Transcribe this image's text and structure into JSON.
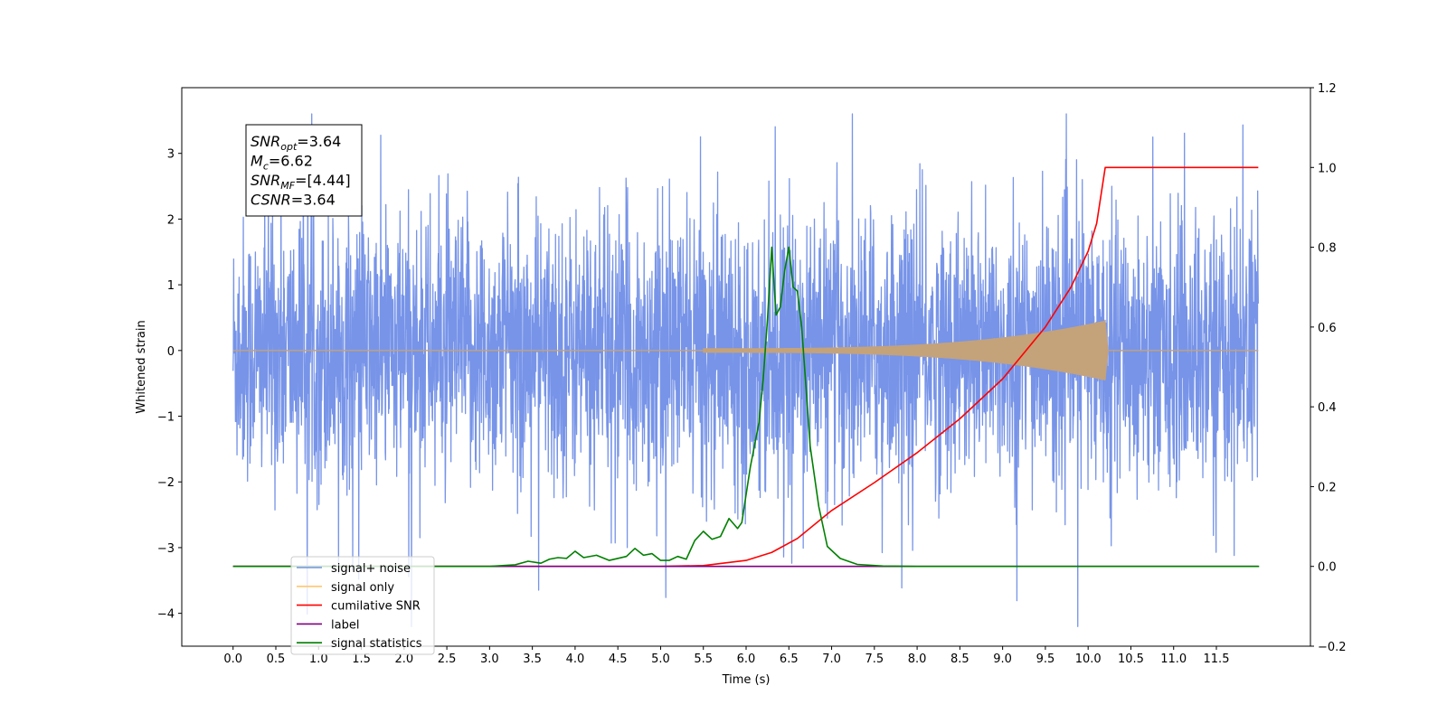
{
  "chart_data": {
    "type": "line",
    "xlabel": "Time (s)",
    "ylabel": "Whitened strain",
    "xlim": [
      -0.6,
      12.6
    ],
    "ylim": [
      -4.5,
      4.0
    ],
    "y2lim": [
      -0.2,
      1.2
    ],
    "x_ticks": [
      "0.0",
      "0.5",
      "1.0",
      "1.5",
      "2.0",
      "2.5",
      "3.0",
      "3.5",
      "4.0",
      "4.5",
      "5.0",
      "5.5",
      "6.0",
      "6.5",
      "7.0",
      "7.5",
      "8.0",
      "8.5",
      "9.0",
      "9.5",
      "10.0",
      "10.5",
      "11.0",
      "11.5"
    ],
    "y_ticks": [
      "3",
      "2",
      "1",
      "0",
      "−1",
      "−2",
      "−3",
      "−4"
    ],
    "y2_ticks": [
      "1.2",
      "1.0",
      "0.8",
      "0.6",
      "0.4",
      "0.2",
      "0.0",
      "−0.2"
    ],
    "legend_position": "lower-left",
    "info_box": [
      {
        "base": "SNR",
        "sub": "opt",
        "rest": "=3.64"
      },
      {
        "base": "M",
        "sub": "c",
        "rest": "=6.62"
      },
      {
        "base": "SNR",
        "sub": "MF",
        "rest": "=[4.44]"
      },
      {
        "base": "CSNR",
        "sub": "",
        "rest": "=3.64"
      }
    ],
    "series": [
      {
        "name": "signal+ noise",
        "color": "#7794e8",
        "axis": "left",
        "kind": "noise",
        "x_range": [
          0,
          11.99
        ],
        "amplitude": 3.6
      },
      {
        "name": "signal only",
        "color": "#c4a27a",
        "axis": "left",
        "kind": "chirp",
        "onset": 5.5,
        "merger": 10.2,
        "peak": 0.45
      },
      {
        "name": "cumilative SNR",
        "color": "#ff0000",
        "axis": "right",
        "x": [
          0,
          5.0,
          5.5,
          6.0,
          6.3,
          6.6,
          7.0,
          7.5,
          8.0,
          8.5,
          9.0,
          9.5,
          9.8,
          10.0,
          10.1,
          10.2,
          11.99
        ],
        "y": [
          0,
          0,
          0.002,
          0.015,
          0.035,
          0.07,
          0.14,
          0.21,
          0.285,
          0.37,
          0.47,
          0.6,
          0.7,
          0.79,
          0.86,
          1.0,
          1.0
        ]
      },
      {
        "name": "label",
        "color": "#800080",
        "axis": "right",
        "x": [
          0,
          11.99
        ],
        "y": [
          0,
          0
        ]
      },
      {
        "name": "signal statistics",
        "color": "#008000",
        "axis": "right",
        "x": [
          0,
          3.0,
          3.3,
          3.45,
          3.6,
          3.7,
          3.8,
          3.9,
          4.0,
          4.1,
          4.25,
          4.4,
          4.6,
          4.7,
          4.8,
          4.9,
          5.0,
          5.1,
          5.2,
          5.3,
          5.4,
          5.5,
          5.6,
          5.7,
          5.8,
          5.9,
          5.95,
          6.05,
          6.15,
          6.2,
          6.25,
          6.3,
          6.35,
          6.4,
          6.45,
          6.5,
          6.55,
          6.6,
          6.65,
          6.7,
          6.75,
          6.85,
          6.95,
          7.1,
          7.3,
          7.6,
          8.0,
          12.0
        ],
        "y": [
          0,
          0,
          0.004,
          0.013,
          0.008,
          0.018,
          0.022,
          0.02,
          0.038,
          0.022,
          0.028,
          0.015,
          0.025,
          0.045,
          0.028,
          0.032,
          0.015,
          0.015,
          0.025,
          0.018,
          0.065,
          0.088,
          0.068,
          0.075,
          0.12,
          0.095,
          0.11,
          0.25,
          0.36,
          0.47,
          0.62,
          0.8,
          0.63,
          0.65,
          0.74,
          0.8,
          0.7,
          0.69,
          0.6,
          0.45,
          0.3,
          0.15,
          0.05,
          0.02,
          0.005,
          0.001,
          0,
          0
        ]
      }
    ]
  },
  "legend": {
    "items": [
      {
        "label": "signal+ noise",
        "color": "#7794e8"
      },
      {
        "label": "signal only",
        "color": "#ffc870"
      },
      {
        "label": "cumilative SNR",
        "color": "#ff0000"
      },
      {
        "label": "label",
        "color": "#800080"
      },
      {
        "label": "signal statistics",
        "color": "#008000"
      }
    ]
  }
}
